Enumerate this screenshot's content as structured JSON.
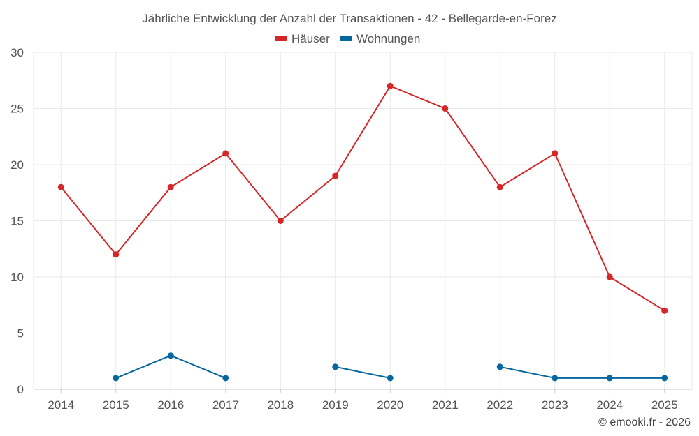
{
  "chart_data": {
    "type": "line",
    "title": "Jährliche Entwicklung der Anzahl der Transaktionen - 42 - Bellegarde-en-Forez",
    "categories": [
      "2014",
      "2015",
      "2016",
      "2017",
      "2018",
      "2019",
      "2020",
      "2021",
      "2022",
      "2023",
      "2024",
      "2025"
    ],
    "series": [
      {
        "name": "Häuser",
        "color": "#d62728",
        "values": [
          18,
          12,
          18,
          21,
          15,
          19,
          27,
          25,
          18,
          21,
          10,
          7
        ]
      },
      {
        "name": "Wohnungen",
        "color": "#05679e",
        "values": [
          null,
          1,
          3,
          1,
          null,
          2,
          1,
          null,
          2,
          1,
          1,
          1
        ]
      }
    ],
    "ylim": [
      0,
      30
    ],
    "yticks": [
      0,
      5,
      10,
      15,
      20,
      25,
      30
    ],
    "grid": true,
    "legend_position": "top-center"
  },
  "credit": "© emooki.fr - 2026"
}
